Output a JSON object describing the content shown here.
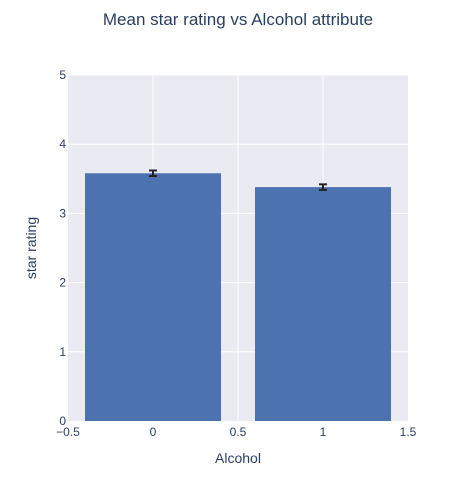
{
  "chart_data": {
    "type": "bar",
    "title": "Mean star rating vs Alcohol attribute",
    "xlabel": "Alcohol",
    "ylabel": "star rating",
    "x": [
      0,
      1
    ],
    "values": [
      3.58,
      3.38
    ],
    "error": [
      0.04,
      0.04
    ],
    "bar_width": 0.8,
    "xlim": [
      -0.5,
      1.5
    ],
    "ylim": [
      0,
      5
    ],
    "x_ticks": [
      -0.5,
      0,
      0.5,
      1,
      1.5
    ],
    "x_tick_labels": [
      "−0.5",
      "0",
      "0.5",
      "1",
      "1.5"
    ],
    "y_ticks": [
      0,
      1,
      2,
      3,
      4,
      5
    ],
    "y_tick_labels": [
      "0",
      "1",
      "2",
      "3",
      "4",
      "5"
    ],
    "grid": true,
    "colors": {
      "bar": "#4c72b0",
      "plot_bg": "#eaeaf2",
      "grid": "#ffffff",
      "error_bar": "#222222",
      "text": "#2a3f5f"
    }
  }
}
